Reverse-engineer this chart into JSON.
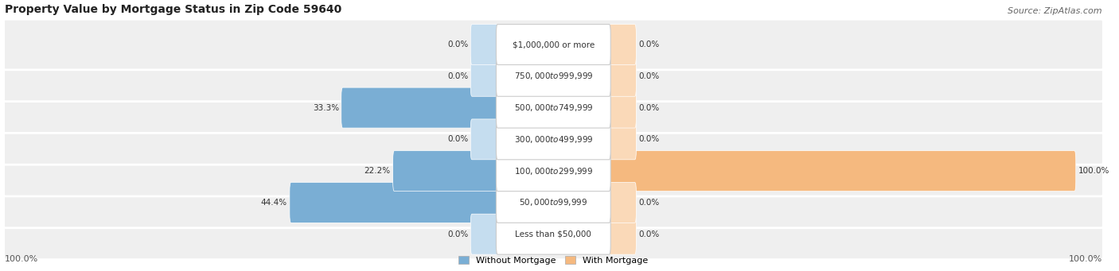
{
  "title": "Property Value by Mortgage Status in Zip Code 59640",
  "source": "Source: ZipAtlas.com",
  "categories": [
    "Less than $50,000",
    "$50,000 to $99,999",
    "$100,000 to $299,999",
    "$300,000 to $499,999",
    "$500,000 to $749,999",
    "$750,000 to $999,999",
    "$1,000,000 or more"
  ],
  "without_mortgage": [
    0.0,
    44.4,
    22.2,
    0.0,
    33.3,
    0.0,
    0.0
  ],
  "with_mortgage": [
    0.0,
    0.0,
    100.0,
    0.0,
    0.0,
    0.0,
    0.0
  ],
  "without_mortgage_color": "#7aaed4",
  "with_mortgage_color": "#f5b97f",
  "row_bg_color": "#efefef",
  "max_value": 100.0,
  "title_fontsize": 10,
  "source_fontsize": 8,
  "label_fontsize": 7.5,
  "category_fontsize": 7.5,
  "legend_fontsize": 8,
  "footer_fontsize": 8
}
